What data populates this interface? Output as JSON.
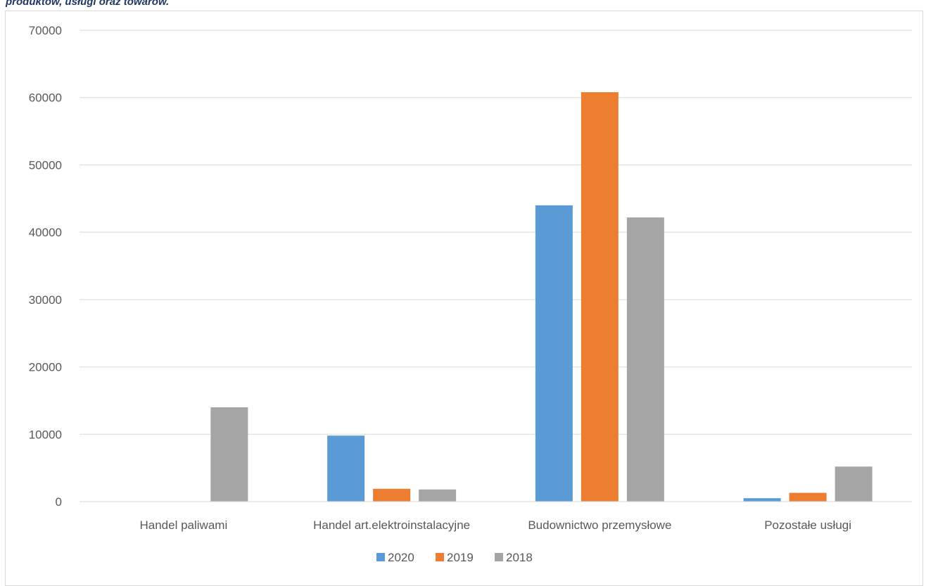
{
  "caption": "produktów, usługi oraz towarów.",
  "chart_data": {
    "type": "bar",
    "categories": [
      "Handel paliwami",
      "Handel art.elektroinstalacyjne",
      "Budownictwo przemysłowe",
      "Pozostałe usługi"
    ],
    "series": [
      {
        "name": "2020",
        "color": "#5b9bd5",
        "values": [
          0,
          9800,
          44000,
          500
        ]
      },
      {
        "name": "2019",
        "color": "#ed7d31",
        "values": [
          0,
          1900,
          60800,
          1300
        ]
      },
      {
        "name": "2018",
        "color": "#a5a5a5",
        "values": [
          14000,
          1800,
          42200,
          5200
        ]
      }
    ],
    "ylim": [
      0,
      70000
    ],
    "yticks": [
      0,
      10000,
      20000,
      30000,
      40000,
      50000,
      60000,
      70000
    ],
    "grid": true,
    "legend": "bottom",
    "title": "",
    "xlabel": "",
    "ylabel": ""
  }
}
